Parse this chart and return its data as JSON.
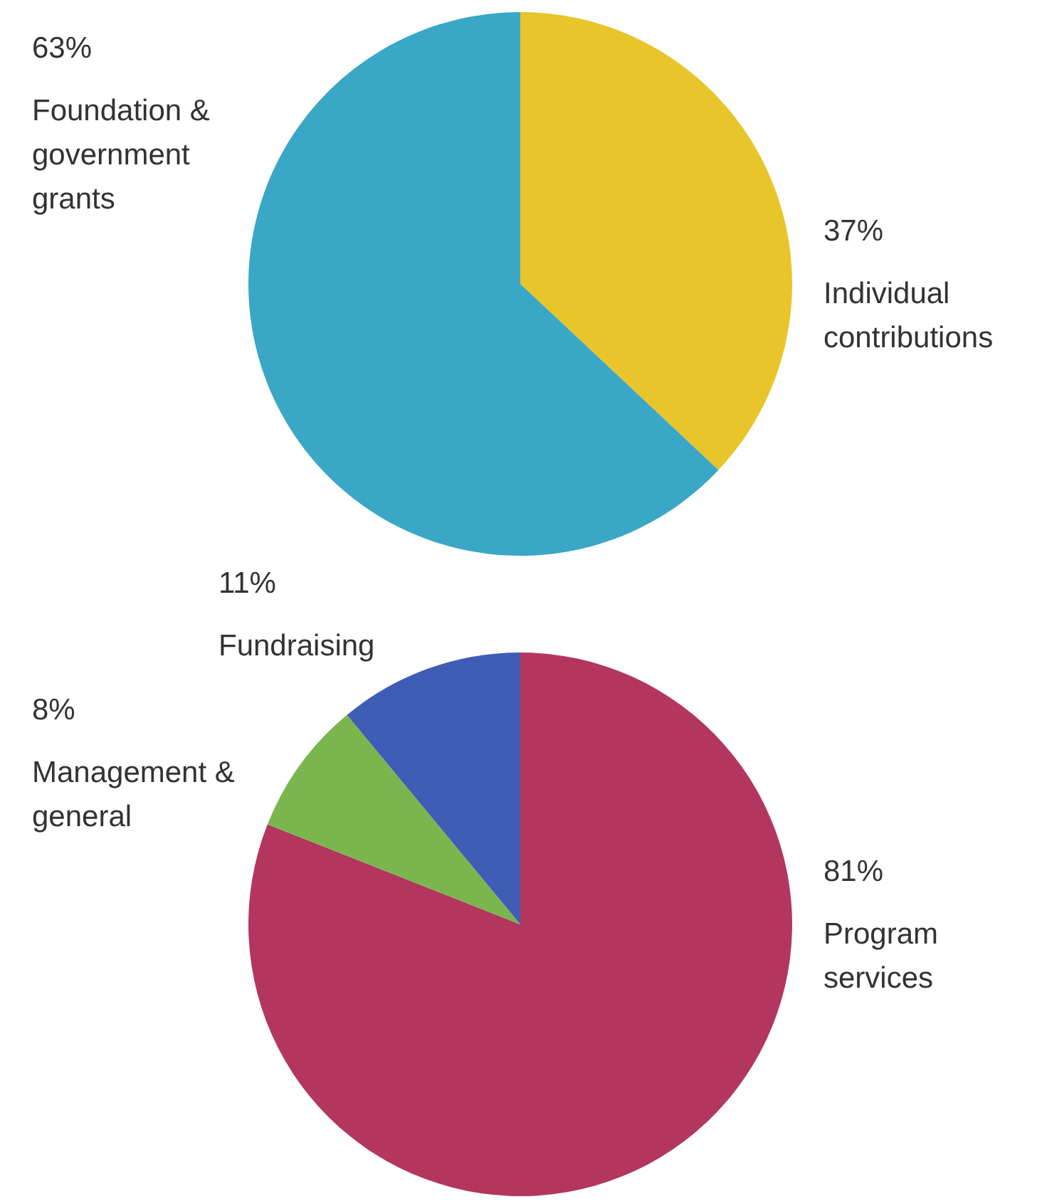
{
  "chart_data": [
    {
      "type": "pie",
      "categories": [
        "Individual contributions",
        "Foundation & government grants"
      ],
      "values": [
        37,
        63
      ],
      "value_labels": [
        "37%",
        "63%"
      ],
      "colors": [
        "#e8c52a",
        "#3aa7c6"
      ]
    },
    {
      "type": "pie",
      "categories": [
        "Program services",
        "Management & general",
        "Fundraising"
      ],
      "values": [
        81,
        8,
        11
      ],
      "value_labels": [
        "81%",
        "8%",
        "11%"
      ],
      "colors": [
        "#b3365f",
        "#7ab54e",
        "#3f5db4"
      ]
    }
  ]
}
